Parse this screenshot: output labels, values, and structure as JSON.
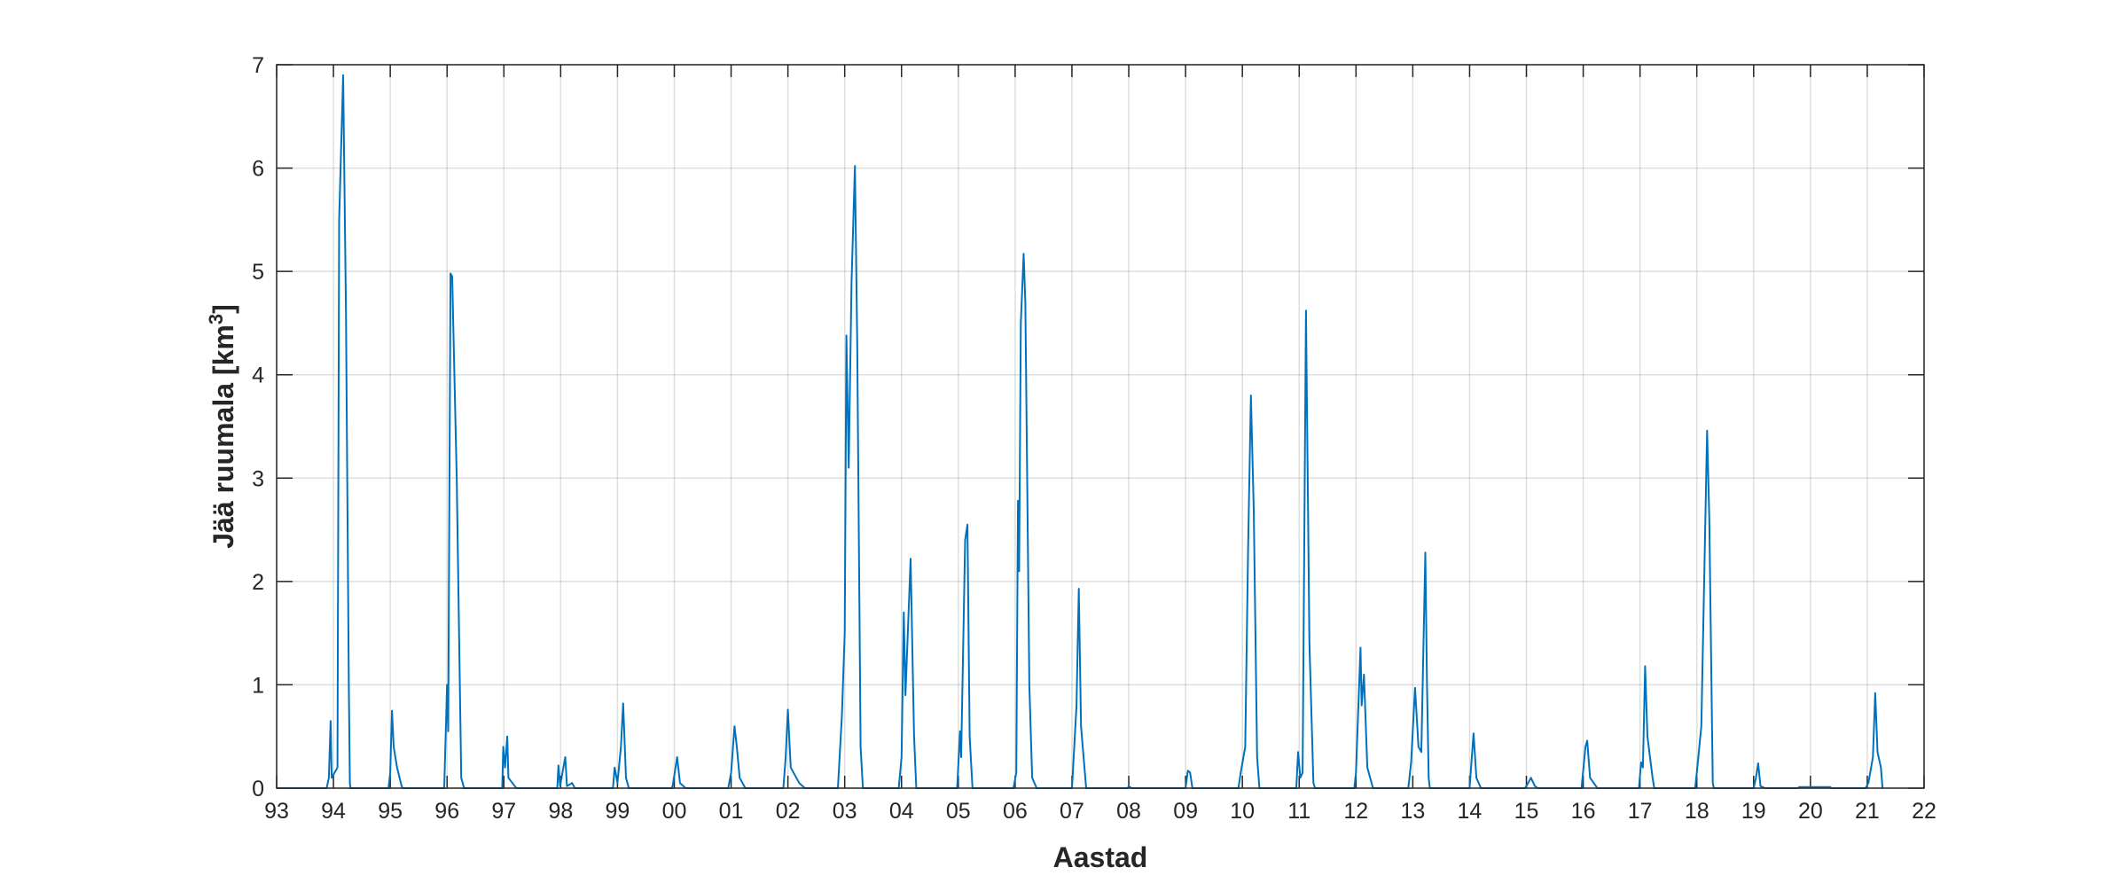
{
  "chart_data": {
    "type": "line",
    "title": "",
    "xlabel": "Aastad",
    "ylabel": "Jää ruumala [km³]",
    "ylabel_main": "Jää ruumala [km",
    "ylabel_sup": "3",
    "ylabel_end": "]",
    "xlim": [
      1993,
      2022
    ],
    "ylim": [
      0,
      7
    ],
    "grid": true,
    "line_color": "#0072BD",
    "x_ticks": [
      1993,
      1994,
      1995,
      1996,
      1997,
      1998,
      1999,
      2000,
      2001,
      2002,
      2003,
      2004,
      2005,
      2006,
      2007,
      2008,
      2009,
      2010,
      2011,
      2012,
      2013,
      2014,
      2015,
      2016,
      2017,
      2018,
      2019,
      2020,
      2021,
      2022
    ],
    "x_tick_labels": [
      "93",
      "94",
      "95",
      "96",
      "97",
      "98",
      "99",
      "00",
      "01",
      "02",
      "03",
      "04",
      "05",
      "06",
      "07",
      "08",
      "09",
      "10",
      "11",
      "12",
      "13",
      "14",
      "15",
      "16",
      "17",
      "18",
      "19",
      "20",
      "21",
      "22"
    ],
    "y_ticks": [
      0,
      1,
      2,
      3,
      4,
      5,
      6,
      7
    ],
    "y_tick_labels": [
      "0",
      "1",
      "2",
      "3",
      "4",
      "5",
      "6",
      "7"
    ],
    "series": [
      {
        "points": [
          [
            1993.0,
            0
          ],
          [
            1993.88,
            0
          ],
          [
            1993.92,
            0.1
          ],
          [
            1993.95,
            0.65
          ],
          [
            1993.97,
            0.1
          ],
          [
            1994.02,
            0.15
          ],
          [
            1994.07,
            0.2
          ],
          [
            1994.1,
            5.5
          ],
          [
            1994.17,
            6.9
          ],
          [
            1994.22,
            4.6
          ],
          [
            1994.27,
            1.0
          ],
          [
            1994.29,
            0.05
          ],
          [
            1994.3,
            0
          ],
          [
            1994.97,
            0
          ],
          [
            1995.0,
            0.15
          ],
          [
            1995.03,
            0.75
          ],
          [
            1995.06,
            0.4
          ],
          [
            1995.12,
            0.2
          ],
          [
            1995.2,
            0.02
          ],
          [
            1995.22,
            0
          ],
          [
            1995.95,
            0
          ],
          [
            1996.0,
            1.0
          ],
          [
            1996.02,
            0.55
          ],
          [
            1996.06,
            4.98
          ],
          [
            1996.09,
            4.95
          ],
          [
            1996.17,
            3.0
          ],
          [
            1996.25,
            0.1
          ],
          [
            1996.3,
            0
          ],
          [
            1996.97,
            0
          ],
          [
            1996.99,
            0.4
          ],
          [
            1997.02,
            0.2
          ],
          [
            1997.06,
            0.5
          ],
          [
            1997.08,
            0.1
          ],
          [
            1997.15,
            0.05
          ],
          [
            1997.22,
            0
          ],
          [
            1997.94,
            0
          ],
          [
            1997.96,
            0.22
          ],
          [
            1997.99,
            0.02
          ],
          [
            1998.08,
            0.3
          ],
          [
            1998.11,
            0.02
          ],
          [
            1998.2,
            0.05
          ],
          [
            1998.25,
            0
          ],
          [
            1998.92,
            0
          ],
          [
            1998.95,
            0.2
          ],
          [
            1999.0,
            0.05
          ],
          [
            1999.06,
            0.4
          ],
          [
            1999.1,
            0.82
          ],
          [
            1999.15,
            0.1
          ],
          [
            1999.2,
            0
          ],
          [
            1999.95,
            0
          ],
          [
            1999.97,
            0.02
          ],
          [
            2000.05,
            0.3
          ],
          [
            2000.1,
            0.05
          ],
          [
            2000.2,
            0
          ],
          [
            2000.95,
            0
          ],
          [
            2001.0,
            0.15
          ],
          [
            2001.06,
            0.6
          ],
          [
            2001.1,
            0.4
          ],
          [
            2001.15,
            0.1
          ],
          [
            2001.25,
            0
          ],
          [
            2001.92,
            0
          ],
          [
            2001.96,
            0.3
          ],
          [
            2002.0,
            0.76
          ],
          [
            2002.05,
            0.2
          ],
          [
            2002.2,
            0.05
          ],
          [
            2002.3,
            0
          ],
          [
            2002.88,
            0
          ],
          [
            2002.95,
            0.7
          ],
          [
            2003.0,
            1.5
          ],
          [
            2003.03,
            4.38
          ],
          [
            2003.07,
            3.1
          ],
          [
            2003.12,
            4.9
          ],
          [
            2003.18,
            6.02
          ],
          [
            2003.22,
            4.3
          ],
          [
            2003.28,
            0.4
          ],
          [
            2003.32,
            0
          ],
          [
            2003.95,
            0
          ],
          [
            2004.0,
            0.3
          ],
          [
            2004.04,
            1.7
          ],
          [
            2004.07,
            0.9
          ],
          [
            2004.16,
            2.22
          ],
          [
            2004.22,
            0.5
          ],
          [
            2004.26,
            0
          ],
          [
            2004.98,
            0
          ],
          [
            2005.03,
            0.55
          ],
          [
            2005.05,
            0.3
          ],
          [
            2005.12,
            2.4
          ],
          [
            2005.16,
            2.55
          ],
          [
            2005.2,
            0.5
          ],
          [
            2005.25,
            0
          ],
          [
            2005.97,
            0
          ],
          [
            2006.02,
            0.15
          ],
          [
            2006.05,
            2.78
          ],
          [
            2006.07,
            2.1
          ],
          [
            2006.1,
            4.5
          ],
          [
            2006.15,
            5.17
          ],
          [
            2006.18,
            4.7
          ],
          [
            2006.25,
            1.0
          ],
          [
            2006.3,
            0.1
          ],
          [
            2006.38,
            0
          ],
          [
            2007.0,
            0
          ],
          [
            2007.08,
            0.8
          ],
          [
            2007.12,
            1.93
          ],
          [
            2007.16,
            0.6
          ],
          [
            2007.25,
            0
          ],
          [
            2007.98,
            0
          ],
          [
            2008.0,
            0.02
          ],
          [
            2008.05,
            0
          ],
          [
            2009.0,
            0
          ],
          [
            2009.04,
            0.17
          ],
          [
            2009.08,
            0.15
          ],
          [
            2009.12,
            0
          ],
          [
            2009.93,
            0
          ],
          [
            2009.97,
            0.15
          ],
          [
            2010.05,
            0.4
          ],
          [
            2010.1,
            2.3
          ],
          [
            2010.15,
            3.8
          ],
          [
            2010.2,
            2.7
          ],
          [
            2010.26,
            0.3
          ],
          [
            2010.3,
            0
          ],
          [
            2010.95,
            0
          ],
          [
            2010.98,
            0.35
          ],
          [
            2011.02,
            0.1
          ],
          [
            2011.06,
            0.15
          ],
          [
            2011.12,
            4.62
          ],
          [
            2011.18,
            1.4
          ],
          [
            2011.25,
            0.05
          ],
          [
            2011.28,
            0
          ],
          [
            2011.97,
            0
          ],
          [
            2012.0,
            0.15
          ],
          [
            2012.08,
            1.36
          ],
          [
            2012.1,
            0.8
          ],
          [
            2012.14,
            1.1
          ],
          [
            2012.2,
            0.2
          ],
          [
            2012.3,
            0
          ],
          [
            2012.92,
            0
          ],
          [
            2012.97,
            0.25
          ],
          [
            2013.04,
            0.97
          ],
          [
            2013.1,
            0.4
          ],
          [
            2013.15,
            0.35
          ],
          [
            2013.22,
            2.28
          ],
          [
            2013.25,
            1.0
          ],
          [
            2013.28,
            0.1
          ],
          [
            2013.3,
            0
          ],
          [
            2014.0,
            0
          ],
          [
            2014.07,
            0.53
          ],
          [
            2014.12,
            0.1
          ],
          [
            2014.2,
            0
          ],
          [
            2014.97,
            0
          ],
          [
            2015.0,
            0.02
          ],
          [
            2015.08,
            0.1
          ],
          [
            2015.15,
            0.02
          ],
          [
            2015.2,
            0
          ],
          [
            2015.97,
            0
          ],
          [
            2016.04,
            0.4
          ],
          [
            2016.07,
            0.46
          ],
          [
            2016.12,
            0.1
          ],
          [
            2016.25,
            0
          ],
          [
            2016.98,
            0
          ],
          [
            2017.02,
            0.25
          ],
          [
            2017.05,
            0.2
          ],
          [
            2017.09,
            1.18
          ],
          [
            2017.13,
            0.5
          ],
          [
            2017.22,
            0.1
          ],
          [
            2017.25,
            0
          ],
          [
            2017.97,
            0
          ],
          [
            2018.0,
            0.15
          ],
          [
            2018.08,
            0.6
          ],
          [
            2018.18,
            3.46
          ],
          [
            2018.22,
            2.6
          ],
          [
            2018.28,
            0.05
          ],
          [
            2018.3,
            0
          ],
          [
            2019.0,
            0
          ],
          [
            2019.04,
            0.1
          ],
          [
            2019.08,
            0.24
          ],
          [
            2019.12,
            0.02
          ],
          [
            2019.2,
            0
          ],
          [
            2019.78,
            0
          ],
          [
            2019.8,
            0.01
          ],
          [
            2020.35,
            0.01
          ],
          [
            2020.37,
            0
          ],
          [
            2020.97,
            0
          ],
          [
            2021.02,
            0.05
          ],
          [
            2021.1,
            0.3
          ],
          [
            2021.14,
            0.92
          ],
          [
            2021.18,
            0.35
          ],
          [
            2021.24,
            0.2
          ],
          [
            2021.27,
            0
          ]
        ]
      }
    ]
  }
}
